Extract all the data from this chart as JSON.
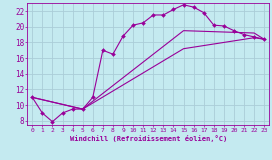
{
  "xlabel": "Windchill (Refroidissement éolien,°C)",
  "background_color": "#c4eaf0",
  "grid_color": "#aacdd8",
  "line_color": "#990099",
  "xlim": [
    -0.5,
    23.5
  ],
  "ylim": [
    7.5,
    23.0
  ],
  "yticks": [
    8,
    10,
    12,
    14,
    16,
    18,
    20,
    22
  ],
  "xticks": [
    0,
    1,
    2,
    3,
    4,
    5,
    6,
    7,
    8,
    9,
    10,
    11,
    12,
    13,
    14,
    15,
    16,
    17,
    18,
    19,
    20,
    21,
    22,
    23
  ],
  "line1_x": [
    0,
    1,
    2,
    3,
    4,
    5,
    6,
    7,
    8,
    9,
    10,
    11,
    12,
    13,
    14,
    15,
    16,
    17,
    18,
    19,
    20,
    21,
    22,
    23
  ],
  "line1_y": [
    11.0,
    9.0,
    7.9,
    9.0,
    9.5,
    9.5,
    11.0,
    17.0,
    16.5,
    18.8,
    20.2,
    20.5,
    21.5,
    21.5,
    22.2,
    22.8,
    22.5,
    21.8,
    20.2,
    20.1,
    19.5,
    19.0,
    18.7,
    18.4
  ],
  "line2_x": [
    0,
    5,
    15,
    22,
    23
  ],
  "line2_y": [
    11.0,
    9.5,
    19.5,
    19.2,
    18.4
  ],
  "line3_x": [
    0,
    5,
    15,
    22,
    23
  ],
  "line3_y": [
    11.0,
    9.5,
    17.2,
    18.6,
    18.4
  ]
}
